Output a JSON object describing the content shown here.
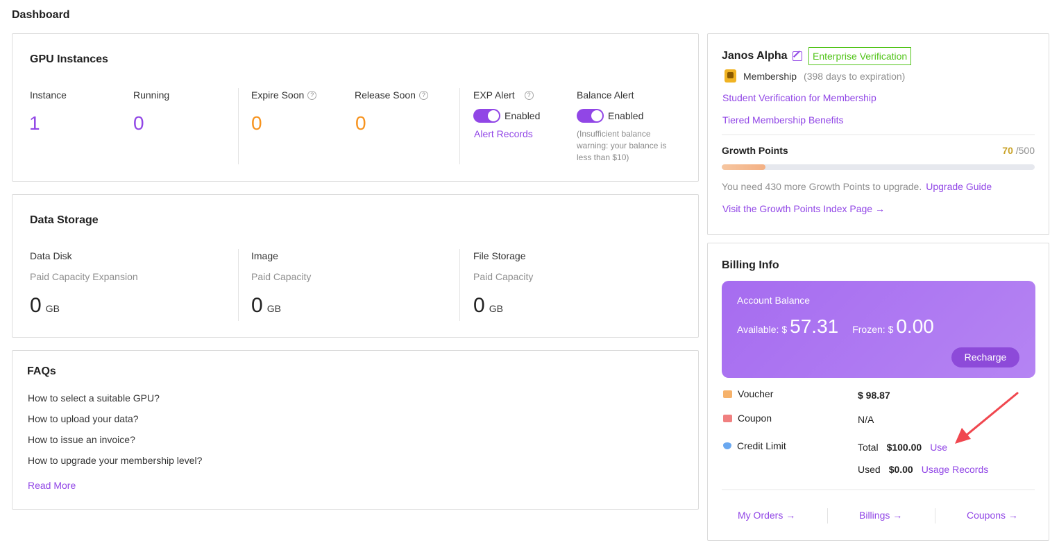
{
  "page_title": "Dashboard",
  "gpu": {
    "title": "GPU Instances",
    "instance": {
      "label": "Instance",
      "value": "1"
    },
    "running": {
      "label": "Running",
      "value": "0"
    },
    "expire_soon": {
      "label": "Expire Soon",
      "value": "0"
    },
    "release_soon": {
      "label": "Release Soon",
      "value": "0"
    },
    "exp_alert": {
      "label": "EXP Alert",
      "state": "Enabled",
      "link": "Alert Records"
    },
    "balance_alert": {
      "label": "Balance Alert",
      "state": "Enabled",
      "note": "(Insufficient balance warning: your balance is less than $10)"
    }
  },
  "storage": {
    "title": "Data Storage",
    "data_disk": {
      "label": "Data Disk",
      "sub": "Paid Capacity Expansion",
      "value": "0",
      "unit": "GB"
    },
    "image": {
      "label": "Image",
      "sub": "Paid Capacity",
      "value": "0",
      "unit": "GB"
    },
    "file_storage": {
      "label": "File Storage",
      "sub": "Paid Capacity",
      "value": "0",
      "unit": "GB"
    }
  },
  "faq": {
    "title": "FAQs",
    "items": [
      "How to select a suitable GPU?",
      "How to upload your data?",
      "How to issue an invoice?",
      "How to upgrade your membership level?"
    ],
    "read_more": "Read More"
  },
  "profile": {
    "name": "Janos Alpha",
    "verification_badge": "Enterprise Verification",
    "membership": "Membership",
    "membership_expiry": "(398 days to expiration)",
    "student_link": "Student Verification for Membership",
    "tiered_link": "Tiered Membership Benefits",
    "growth_label": "Growth Points",
    "growth_current": "70",
    "growth_total": "/500",
    "growth_fraction": 0.14,
    "upgrade_text": "You need 430 more Growth Points to upgrade.",
    "upgrade_link": "Upgrade Guide",
    "index_link": "Visit the Growth Points Index Page →"
  },
  "billing": {
    "title": "Billing Info",
    "account_balance_label": "Account Balance",
    "available_label": "Available: $",
    "available_value": "57.31",
    "frozen_label": "Frozen: $",
    "frozen_value": "0.00",
    "recharge": "Recharge",
    "voucher_label": "Voucher",
    "voucher_value": "$ 98.87",
    "coupon_label": "Coupon",
    "coupon_value": "N/A",
    "credit_label": "Credit Limit",
    "total_label": "Total",
    "total_value": "$100.00",
    "use_link": "Use",
    "used_label": "Used",
    "used_value": "$0.00",
    "usage_link": "Usage Records",
    "my_orders": "My Orders →",
    "billings": "Billings →",
    "coupons": "Coupons →"
  },
  "colors": {
    "accent": "#9146e6",
    "orange": "#f7931e",
    "green": "#52c41a",
    "arrow": "#f0474f"
  }
}
